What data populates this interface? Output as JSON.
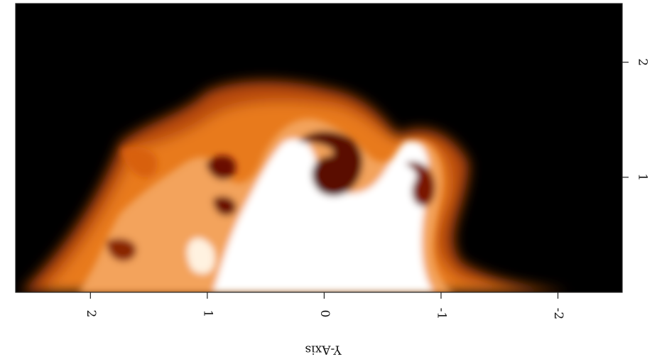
{
  "chart_data": {
    "type": "image",
    "xlabel": "Y-Axis",
    "xlim": [
      2.64,
      -2.55
    ],
    "xticks": [
      2,
      1,
      0,
      -1,
      -2
    ],
    "ylim": [
      0,
      2.51
    ],
    "yticks": [
      1,
      2
    ]
  }
}
